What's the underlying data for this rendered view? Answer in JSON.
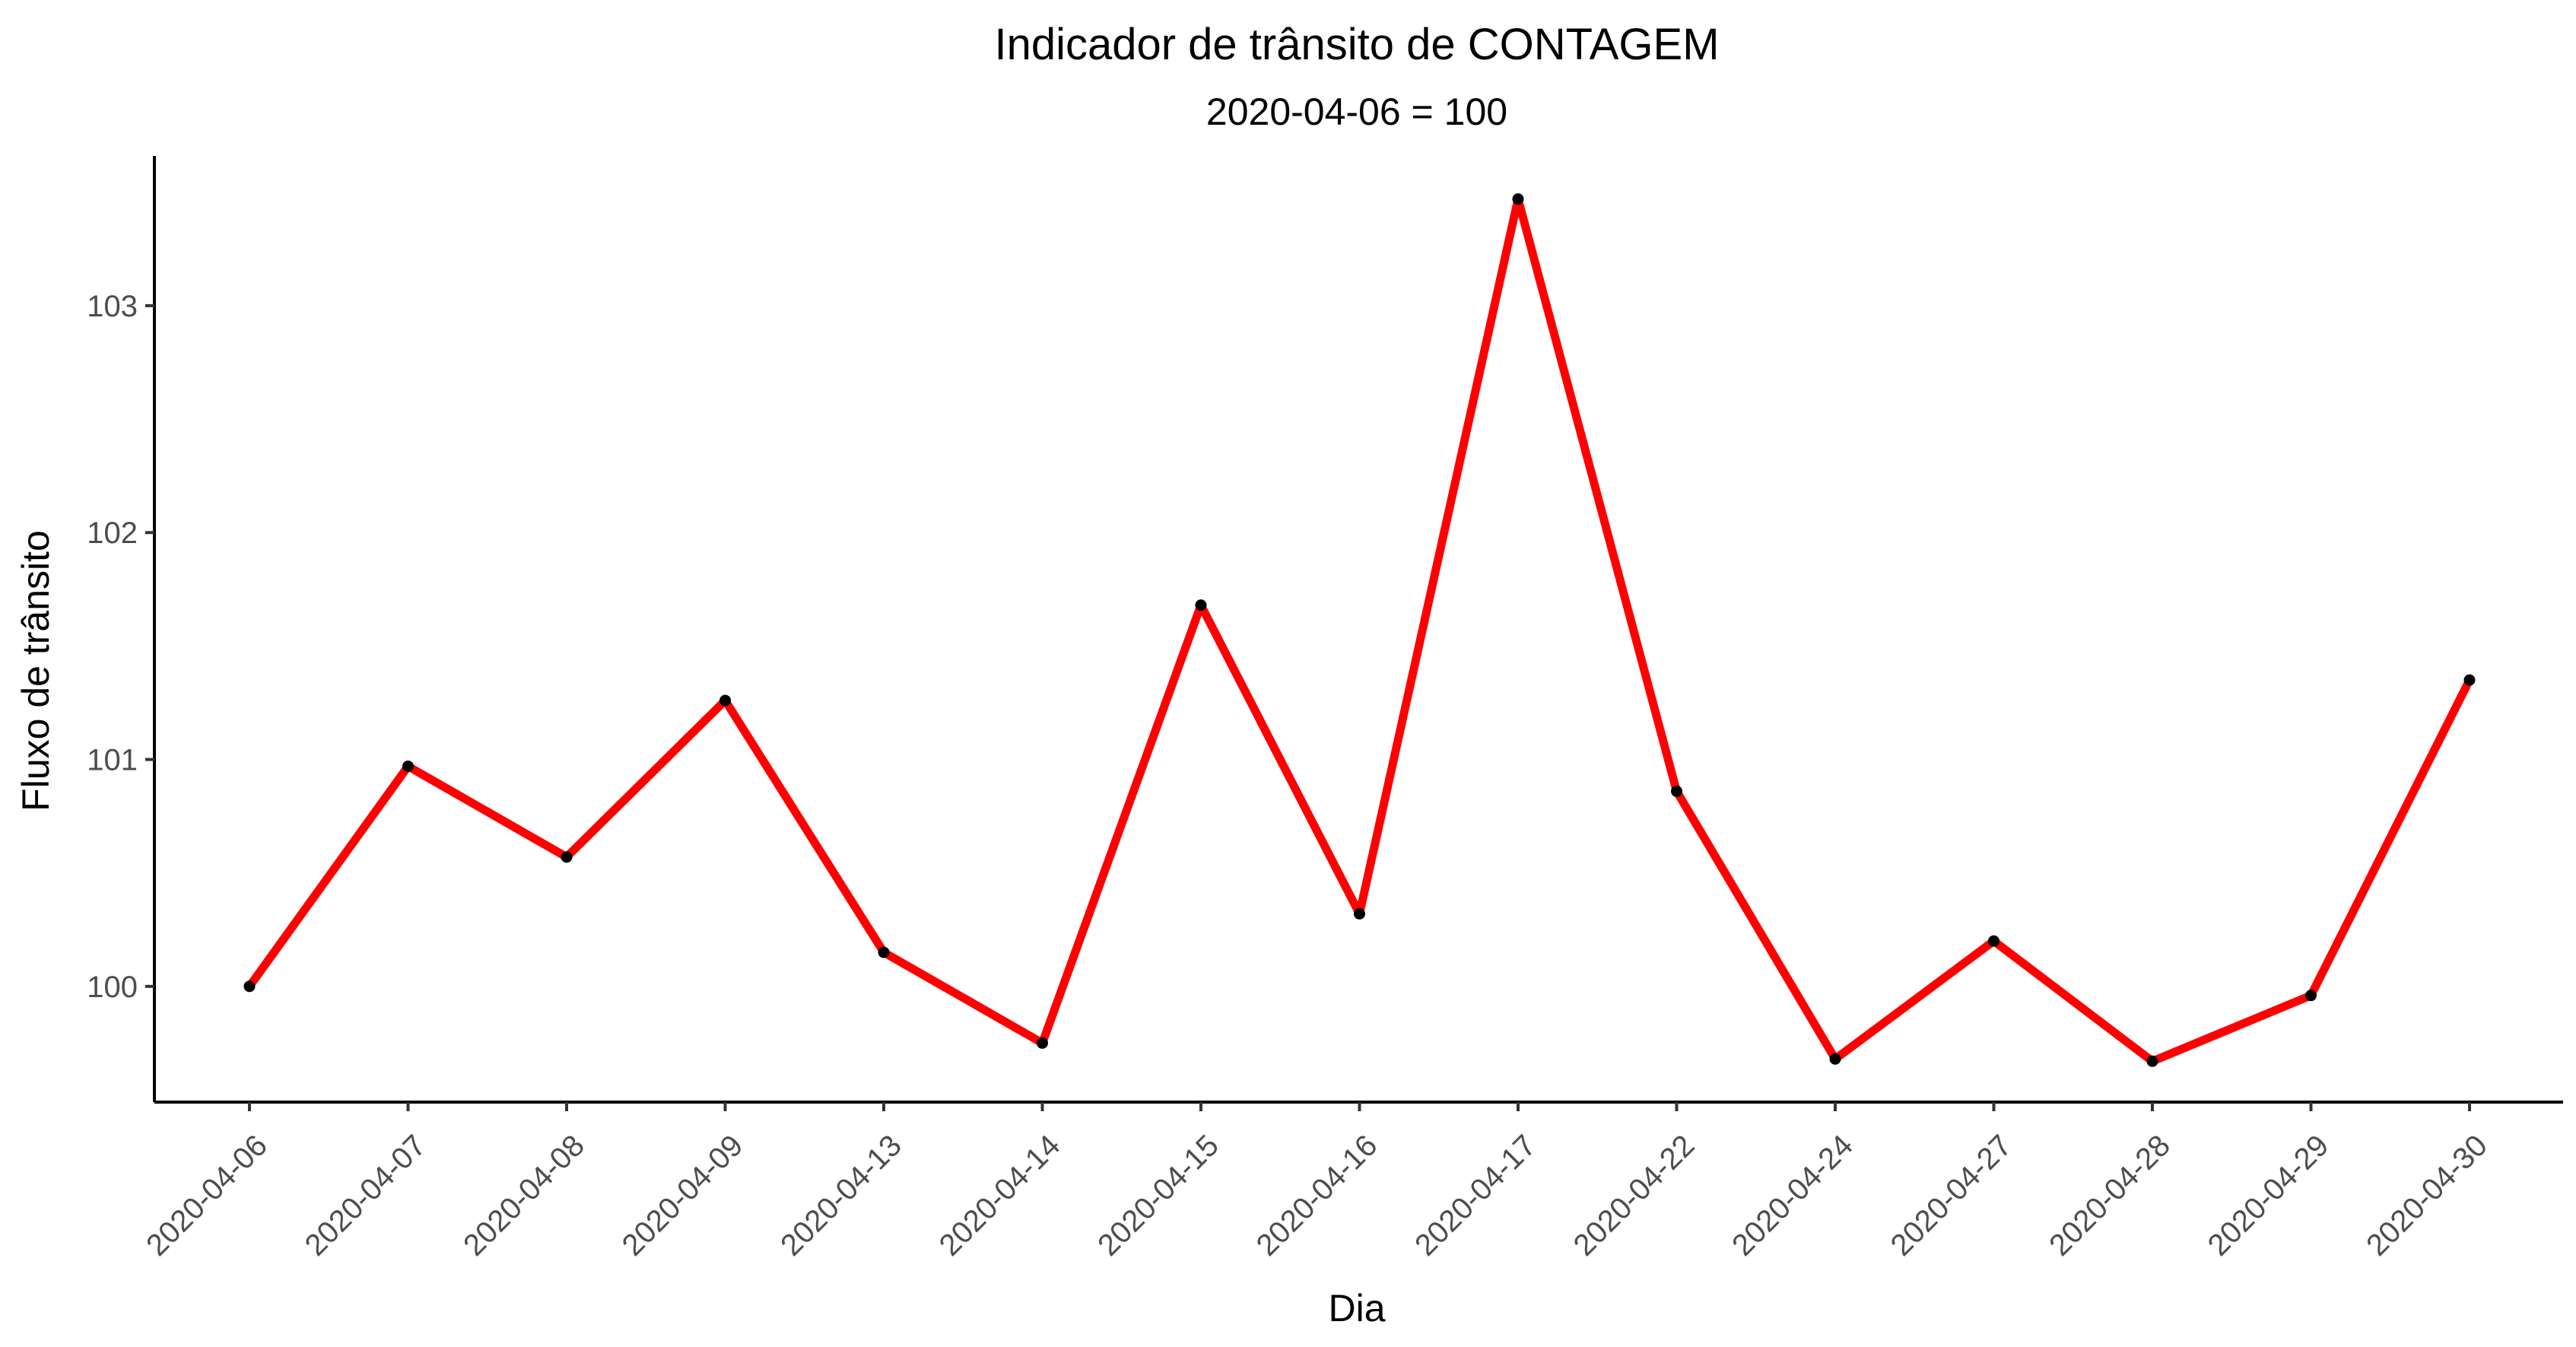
{
  "chart_data": {
    "type": "line",
    "title": "Indicador de trânsito de CONTAGEM",
    "subtitle": "2020-04-06 = 100",
    "xlabel": "Dia",
    "ylabel": "Fluxo de trânsito",
    "categories": [
      "2020-04-06",
      "2020-04-07",
      "2020-04-08",
      "2020-04-09",
      "2020-04-13",
      "2020-04-14",
      "2020-04-15",
      "2020-04-16",
      "2020-04-17",
      "2020-04-22",
      "2020-04-24",
      "2020-04-27",
      "2020-04-28",
      "2020-04-29",
      "2020-04-30"
    ],
    "series": [
      {
        "values": [
          100.0,
          100.97,
          100.57,
          101.26,
          100.15,
          99.75,
          101.68,
          100.32,
          103.47,
          100.86,
          99.68,
          100.2,
          99.67,
          99.96,
          101.35
        ]
      }
    ],
    "yticks": [
      100,
      101,
      102,
      103
    ],
    "ylim": [
      99.49,
      103.66
    ],
    "grid": false,
    "legend": "none",
    "colors": {
      "line": "#ff0000",
      "point": "#000000"
    }
  }
}
